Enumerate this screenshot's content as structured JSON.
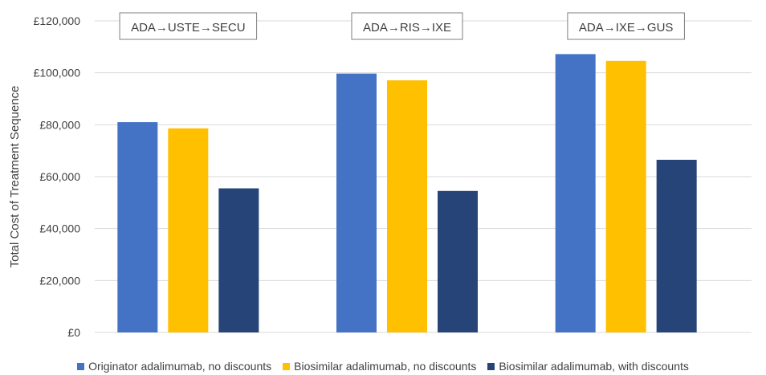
{
  "chart_data": {
    "type": "bar",
    "ylabel": "Total Cost of Treatment Sequence",
    "xlabel": "",
    "ylim": [
      0,
      120000
    ],
    "yticks": [
      0,
      20000,
      40000,
      60000,
      80000,
      100000,
      120000
    ],
    "ytick_labels": [
      "£0",
      "£20,000",
      "£40,000",
      "£60,000",
      "£80,000",
      "£100,000",
      "£120,000"
    ],
    "categories": [
      "ADA→USTE→SECU",
      "ADA→RIS→IXE",
      "ADA→IXE→GUS"
    ],
    "series": [
      {
        "name": "Originator adalimumab, no discounts",
        "color": "#4472C4",
        "values": [
          81000,
          99700,
          107200
        ]
      },
      {
        "name": "Biosimilar adalimumab, no discounts",
        "color": "#FFC000",
        "values": [
          78600,
          97100,
          104600
        ]
      },
      {
        "name": "Biosimilar adalimumab, with discounts",
        "color": "#264478",
        "values": [
          55500,
          54500,
          66500
        ]
      }
    ],
    "grid": true,
    "gridline_color": "#d9d9d9",
    "legend_position": "bottom"
  }
}
